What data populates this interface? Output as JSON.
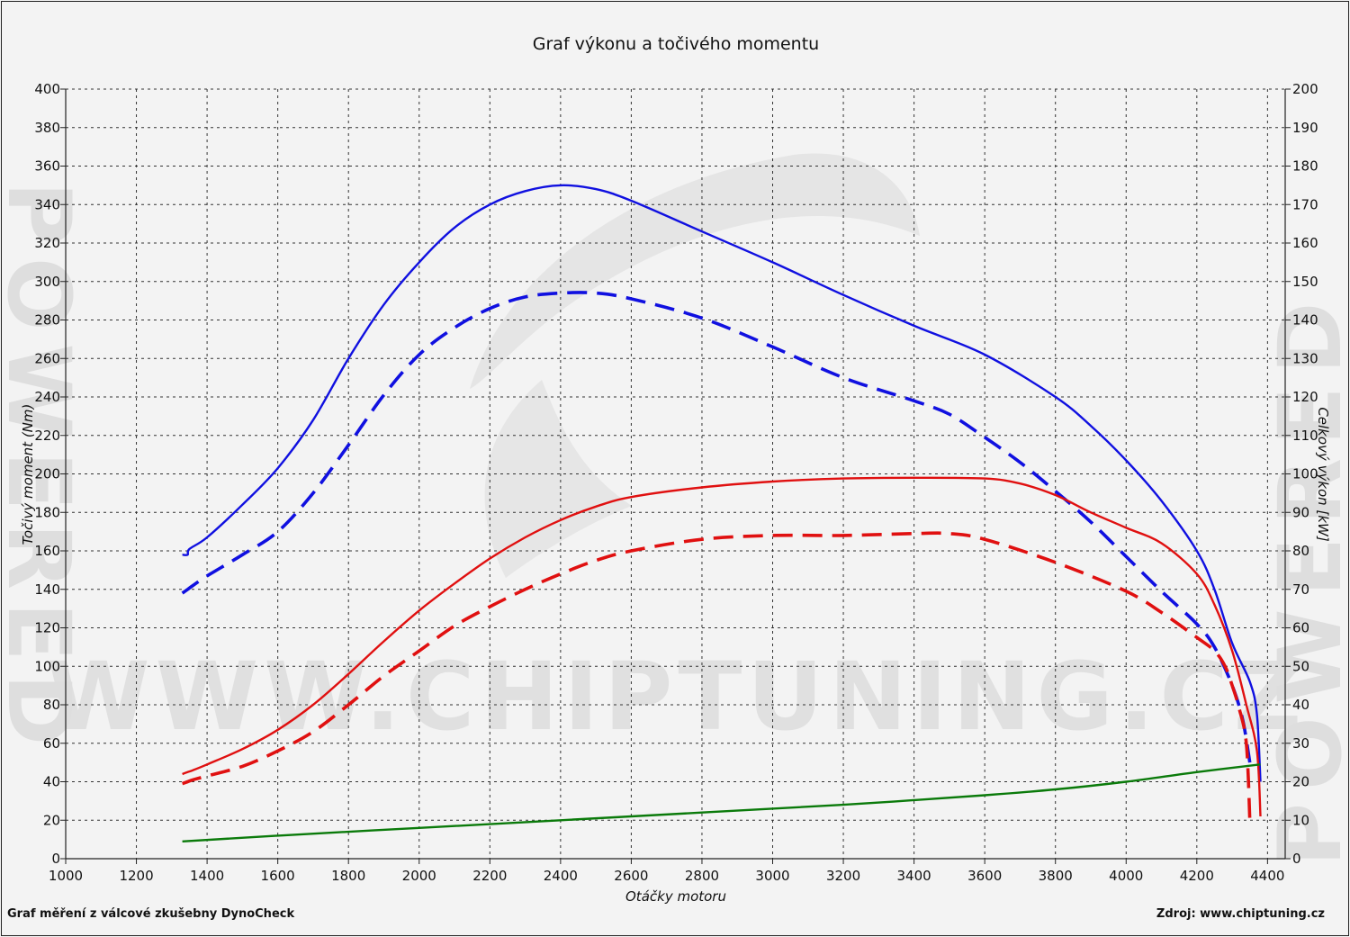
{
  "chart_data": {
    "type": "line",
    "title": "Graf výkonu a točivého momentu",
    "xlabel": "Otáčky motoru",
    "ylabel": "Točivý moment (Nm)",
    "ylabel_right": "Celkový výkon [kW]",
    "xlim": [
      1000,
      4450
    ],
    "ylim": [
      0,
      400
    ],
    "ylim_right": [
      0,
      200
    ],
    "x_ticks": [
      1000,
      1200,
      1400,
      1600,
      1800,
      2000,
      2200,
      2400,
      2600,
      2800,
      3000,
      3200,
      3400,
      3600,
      3800,
      4000,
      4200,
      4400
    ],
    "y_ticks": [
      0,
      20,
      40,
      60,
      80,
      100,
      120,
      140,
      160,
      180,
      200,
      220,
      240,
      260,
      280,
      300,
      320,
      340,
      360,
      380,
      400
    ],
    "y_ticks_right": [
      0,
      10,
      20,
      30,
      40,
      50,
      60,
      70,
      80,
      90,
      100,
      110,
      120,
      130,
      140,
      150,
      160,
      170,
      180,
      190,
      200
    ],
    "grid": true,
    "series": [
      {
        "axis": "left",
        "color": "#1010e0",
        "dashed": false,
        "points": [
          [
            1330,
            158
          ],
          [
            1345,
            158
          ],
          [
            1350,
            161
          ],
          [
            1400,
            167
          ],
          [
            1500,
            184
          ],
          [
            1600,
            203
          ],
          [
            1700,
            228
          ],
          [
            1800,
            260
          ],
          [
            1900,
            288
          ],
          [
            2000,
            310
          ],
          [
            2100,
            328
          ],
          [
            2200,
            340
          ],
          [
            2300,
            347
          ],
          [
            2400,
            350
          ],
          [
            2500,
            348
          ],
          [
            2600,
            342
          ],
          [
            2800,
            326
          ],
          [
            3000,
            310
          ],
          [
            3200,
            293
          ],
          [
            3400,
            277
          ],
          [
            3600,
            262
          ],
          [
            3800,
            240
          ],
          [
            3900,
            225
          ],
          [
            4000,
            207
          ],
          [
            4100,
            186
          ],
          [
            4200,
            160
          ],
          [
            4250,
            140
          ],
          [
            4300,
            112
          ],
          [
            4350,
            92
          ],
          [
            4370,
            75
          ],
          [
            4380,
            40
          ]
        ]
      },
      {
        "axis": "left",
        "color": "#1010e0",
        "dashed": true,
        "points": [
          [
            1330,
            138
          ],
          [
            1345,
            140
          ],
          [
            1360,
            142
          ],
          [
            1400,
            147
          ],
          [
            1500,
            158
          ],
          [
            1600,
            170
          ],
          [
            1700,
            190
          ],
          [
            1800,
            215
          ],
          [
            1900,
            241
          ],
          [
            2000,
            262
          ],
          [
            2100,
            276
          ],
          [
            2200,
            286
          ],
          [
            2300,
            292
          ],
          [
            2400,
            294
          ],
          [
            2500,
            294
          ],
          [
            2600,
            291
          ],
          [
            2800,
            281
          ],
          [
            3000,
            266
          ],
          [
            3200,
            250
          ],
          [
            3400,
            238
          ],
          [
            3500,
            231
          ],
          [
            3600,
            219
          ],
          [
            3700,
            206
          ],
          [
            3800,
            191
          ],
          [
            3900,
            175
          ],
          [
            4000,
            157
          ],
          [
            4100,
            139
          ],
          [
            4200,
            122
          ],
          [
            4250,
            110
          ],
          [
            4300,
            90
          ],
          [
            4330,
            72
          ],
          [
            4350,
            50
          ]
        ]
      },
      {
        "axis": "right",
        "color": "#e01010",
        "dashed": false,
        "points": [
          [
            1330,
            22
          ],
          [
            1345,
            22.5
          ],
          [
            1360,
            23
          ],
          [
            1400,
            24.5
          ],
          [
            1500,
            28.5
          ],
          [
            1600,
            33.5
          ],
          [
            1700,
            40
          ],
          [
            1800,
            48
          ],
          [
            1900,
            56.5
          ],
          [
            2000,
            64.5
          ],
          [
            2100,
            71.5
          ],
          [
            2200,
            78
          ],
          [
            2300,
            83.5
          ],
          [
            2400,
            88
          ],
          [
            2500,
            91.5
          ],
          [
            2600,
            94
          ],
          [
            2800,
            96.5
          ],
          [
            3000,
            98
          ],
          [
            3200,
            98.8
          ],
          [
            3400,
            99
          ],
          [
            3600,
            98.8
          ],
          [
            3700,
            97.5
          ],
          [
            3800,
            94.5
          ],
          [
            3900,
            90
          ],
          [
            4000,
            86
          ],
          [
            4100,
            82
          ],
          [
            4200,
            74
          ],
          [
            4250,
            66
          ],
          [
            4300,
            54
          ],
          [
            4340,
            40
          ],
          [
            4370,
            28
          ],
          [
            4380,
            11
          ]
        ]
      },
      {
        "axis": "right",
        "color": "#e01010",
        "dashed": true,
        "points": [
          [
            1330,
            19.5
          ],
          [
            1345,
            20
          ],
          [
            1360,
            20.5
          ],
          [
            1400,
            21.5
          ],
          [
            1500,
            24
          ],
          [
            1600,
            28
          ],
          [
            1700,
            33
          ],
          [
            1800,
            40
          ],
          [
            1900,
            47.5
          ],
          [
            2000,
            54
          ],
          [
            2100,
            60.5
          ],
          [
            2200,
            65.5
          ],
          [
            2300,
            70
          ],
          [
            2400,
            74
          ],
          [
            2500,
            77.5
          ],
          [
            2600,
            80
          ],
          [
            2800,
            83
          ],
          [
            3000,
            84
          ],
          [
            3200,
            84
          ],
          [
            3400,
            84.5
          ],
          [
            3500,
            84.5
          ],
          [
            3600,
            83
          ],
          [
            3800,
            77
          ],
          [
            4000,
            69.5
          ],
          [
            4100,
            64
          ],
          [
            4200,
            57.5
          ],
          [
            4250,
            54
          ],
          [
            4280,
            50
          ],
          [
            4300,
            45
          ],
          [
            4320,
            39
          ],
          [
            4340,
            30
          ],
          [
            4350,
            10
          ]
        ]
      },
      {
        "axis": "left",
        "color": "#0a7a0a",
        "dashed": false,
        "points": [
          [
            1330,
            9
          ],
          [
            1600,
            12
          ],
          [
            2000,
            16
          ],
          [
            2400,
            20
          ],
          [
            2800,
            24
          ],
          [
            3200,
            28
          ],
          [
            3600,
            33
          ],
          [
            3800,
            36
          ],
          [
            4000,
            40
          ],
          [
            4200,
            45
          ],
          [
            4380,
            49
          ]
        ]
      }
    ]
  },
  "footer": {
    "left": "Graf měření z válcové zkušebny DynoCheck",
    "right": "Zdroj: www.chiptuning.cz"
  },
  "watermark": {
    "url": "WWW.CHIPTUNING.CZ",
    "side": "POWERED"
  },
  "colors": {
    "background": "#f3f3f3",
    "watermark": "#d9d9d9"
  }
}
